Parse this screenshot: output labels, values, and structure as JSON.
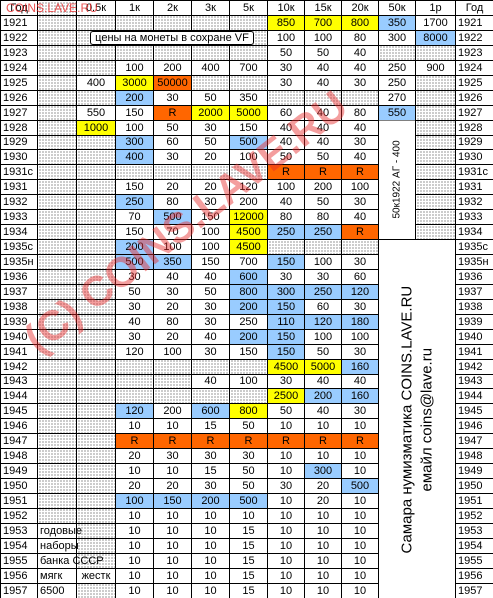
{
  "columns": [
    "Год",
    null,
    "0.5к",
    "1к",
    "2к",
    "3к",
    "5к",
    "10к",
    "15к",
    "20к",
    "50к",
    "1р",
    "Год"
  ],
  "palette": {
    "y": "#ffff00",
    "b": "#99ccff",
    "o": "#ff6600"
  },
  "vf_note": "цены на монеты в сохране VF",
  "side_note": "50к1922 АГ - 400",
  "contacts": [
    "Самара нумизматика COINS.LAVE.RU",
    "емайл coins@lave.ru"
  ],
  "watermark_top": "COINS.LAVE.RU",
  "watermark": "(C) COINS.LAVE.RU",
  "rows": [
    {
      "year": "1921",
      "cells": [
        null,
        null,
        null,
        null,
        null,
        null,
        "850",
        "700",
        "800",
        "350",
        "1700"
      ],
      "hl": {
        "6": "y",
        "7": "y",
        "8": "y",
        "9": "b"
      }
    },
    {
      "year": "1922",
      "cells": [
        null,
        null,
        null,
        null,
        null,
        null,
        "100",
        "100",
        "80",
        "300",
        "8000"
      ],
      "hl": {
        "10": "b"
      }
    },
    {
      "year": "1923",
      "cells": [
        null,
        null,
        null,
        null,
        null,
        null,
        "50",
        "50",
        "40",
        null,
        null
      ]
    },
    {
      "year": "1924",
      "cells": [
        null,
        null,
        "100",
        "200",
        "400",
        "700",
        "30",
        "40",
        "40",
        "250",
        "900"
      ]
    },
    {
      "year": "1925",
      "cells": [
        null,
        "400",
        "3000",
        "50000",
        null,
        null,
        "30",
        "40",
        "30",
        "250",
        null
      ],
      "hl": {
        "2": "y",
        "3": "o"
      }
    },
    {
      "year": "1926",
      "cells": [
        null,
        null,
        "200",
        "30",
        "50",
        "350",
        null,
        null,
        null,
        "270",
        null
      ],
      "hl": {
        "2": "b"
      }
    },
    {
      "year": "1927",
      "cells": [
        null,
        "550",
        "150",
        "R",
        "2000",
        "5000",
        "60",
        "40",
        "80",
        "550",
        null
      ],
      "hl": {
        "3": "o",
        "4": "y",
        "5": "y",
        "9": "b"
      }
    },
    {
      "year": "1928",
      "cells": [
        null,
        "1000",
        "100",
        "50",
        "30",
        "150",
        "40",
        "40",
        "40",
        null,
        null
      ],
      "hl": {
        "1": "y"
      }
    },
    {
      "year": "1929",
      "cells": [
        null,
        null,
        "300",
        "60",
        "50",
        "500",
        "40",
        "40",
        "30",
        null,
        null
      ],
      "hl": {
        "2": "b",
        "5": "b"
      }
    },
    {
      "year": "1930",
      "cells": [
        null,
        null,
        "400",
        "30",
        "20",
        "100",
        "50",
        "50",
        "40",
        null,
        null
      ],
      "hl": {
        "2": "b"
      }
    },
    {
      "year": "1931с",
      "cells": [
        null,
        null,
        null,
        null,
        null,
        null,
        "R",
        "R",
        "R",
        null,
        null
      ],
      "hl": {
        "6": "o",
        "7": "o",
        "8": "o"
      }
    },
    {
      "year": "1931",
      "cells": [
        null,
        null,
        "150",
        "20",
        "20",
        "120",
        "100",
        "200",
        "100",
        null,
        null
      ]
    },
    {
      "year": "1932",
      "cells": [
        null,
        null,
        "250",
        "80",
        "30",
        "200",
        "40",
        "50",
        "30",
        null,
        null
      ],
      "hl": {
        "2": "b"
      }
    },
    {
      "year": "1933",
      "cells": [
        null,
        null,
        "70",
        "500",
        "150",
        "12000",
        "80",
        "80",
        "40",
        null,
        null
      ],
      "hl": {
        "3": "b",
        "5": "y"
      }
    },
    {
      "year": "1934",
      "cells": [
        null,
        null,
        "150",
        "70",
        "100",
        "4500",
        "250",
        "250",
        "R",
        null,
        null
      ],
      "hl": {
        "5": "y",
        "6": "b",
        "7": "b",
        "8": "o"
      }
    },
    {
      "year": "1935с",
      "cells": [
        null,
        null,
        "200",
        "100",
        "100",
        "4500",
        null,
        null,
        null,
        null,
        null
      ],
      "hl": {
        "2": "b",
        "5": "y"
      }
    },
    {
      "year": "1935н",
      "cells": [
        null,
        null,
        "500",
        "350",
        "150",
        "700",
        "150",
        "100",
        "30",
        null,
        null
      ],
      "hl": {
        "2": "b",
        "3": "b",
        "6": "b"
      }
    },
    {
      "year": "1936",
      "cells": [
        null,
        null,
        "30",
        "40",
        "40",
        "600",
        "30",
        "30",
        "60",
        null,
        null
      ],
      "hl": {
        "5": "b"
      }
    },
    {
      "year": "1937",
      "cells": [
        null,
        null,
        "50",
        "30",
        "50",
        "800",
        "300",
        "250",
        "120",
        null,
        null
      ],
      "hl": {
        "5": "b",
        "6": "b",
        "7": "b",
        "8": "b"
      }
    },
    {
      "year": "1938",
      "cells": [
        null,
        null,
        "30",
        "20",
        "30",
        "200",
        "150",
        "60",
        "30",
        null,
        null
      ],
      "hl": {
        "5": "b",
        "6": "b"
      }
    },
    {
      "year": "1939",
      "cells": [
        null,
        null,
        "40",
        "80",
        "30",
        "250",
        "110",
        "120",
        "180",
        null,
        null
      ],
      "hl": {
        "6": "b",
        "7": "b",
        "8": "b"
      }
    },
    {
      "year": "1940",
      "cells": [
        null,
        null,
        "30",
        "20",
        "40",
        "200",
        "150",
        "100",
        "100",
        null,
        null
      ],
      "hl": {
        "5": "b",
        "6": "b"
      }
    },
    {
      "year": "1941",
      "cells": [
        null,
        null,
        "120",
        "100",
        "30",
        "150",
        "150",
        "50",
        "30",
        null,
        null
      ],
      "hl": {
        "6": "b"
      }
    },
    {
      "year": "1942",
      "cells": [
        null,
        null,
        null,
        null,
        null,
        null,
        "4500",
        "5000",
        "160",
        null,
        null
      ],
      "hl": {
        "6": "y",
        "7": "y",
        "8": "b"
      }
    },
    {
      "year": "1943",
      "cells": [
        null,
        null,
        null,
        null,
        "40",
        "100",
        "30",
        "40",
        "40",
        null,
        null
      ]
    },
    {
      "year": "1944",
      "cells": [
        null,
        null,
        null,
        null,
        null,
        null,
        "2500",
        "200",
        "160",
        null,
        null
      ],
      "hl": {
        "6": "y",
        "7": "b",
        "8": "b"
      }
    },
    {
      "year": "1945",
      "cells": [
        null,
        null,
        "120",
        "200",
        "600",
        "800",
        "50",
        "40",
        "30",
        null,
        null
      ],
      "hl": {
        "2": "b",
        "4": "b",
        "5": "y"
      }
    },
    {
      "year": "1946",
      "cells": [
        null,
        null,
        "10",
        "10",
        "15",
        "50",
        "10",
        "10",
        "10",
        null,
        null
      ]
    },
    {
      "year": "1947",
      "cells": [
        null,
        null,
        "R",
        "R",
        "R",
        "R",
        "R",
        "R",
        "R",
        null,
        null
      ],
      "hl": {
        "2": "o",
        "3": "o",
        "4": "o",
        "5": "o",
        "6": "o",
        "7": "o",
        "8": "o"
      }
    },
    {
      "year": "1948",
      "cells": [
        null,
        null,
        "20",
        "30",
        "30",
        "30",
        "10",
        "10",
        "10",
        null,
        null
      ]
    },
    {
      "year": "1949",
      "cells": [
        null,
        null,
        "10",
        "10",
        "15",
        "50",
        "10",
        "300",
        "10",
        null,
        null
      ],
      "hl": {
        "7": "b"
      }
    },
    {
      "year": "1950",
      "cells": [
        null,
        null,
        "20",
        "20",
        "30",
        "50",
        "30",
        "20",
        "500",
        null,
        null
      ],
      "hl": {
        "8": "b"
      }
    },
    {
      "year": "1951",
      "cells": [
        null,
        null,
        "100",
        "150",
        "200",
        "500",
        "10",
        "20",
        "10",
        null,
        null
      ],
      "hl": {
        "2": "b",
        "3": "b",
        "4": "b",
        "5": "b"
      }
    },
    {
      "year": "1952",
      "cells": [
        null,
        null,
        "10",
        "10",
        "10",
        "10",
        "10",
        "10",
        "10",
        null,
        null
      ]
    },
    {
      "year": "1953",
      "cells": [
        "годовые",
        null,
        "10",
        "10",
        "10",
        "15",
        "10",
        "10",
        "10",
        null,
        null
      ]
    },
    {
      "year": "1954",
      "cells": [
        "наборы",
        null,
        "10",
        "10",
        "10",
        "15",
        "10",
        "10",
        "10",
        null,
        null
      ]
    },
    {
      "year": "1955",
      "cells": [
        "банка СССР",
        null,
        "10",
        "10",
        "10",
        "15",
        "10",
        "10",
        "10",
        null,
        null
      ]
    },
    {
      "year": "1956",
      "cells": [
        "мягк",
        "жестк",
        "10",
        "10",
        "10",
        "15",
        "10",
        "10",
        "10",
        null,
        null
      ]
    },
    {
      "year": "1957",
      "cells": [
        "6500",
        null,
        "10",
        "10",
        "10",
        "15",
        "10",
        "10",
        "10",
        null,
        null
      ]
    }
  ]
}
